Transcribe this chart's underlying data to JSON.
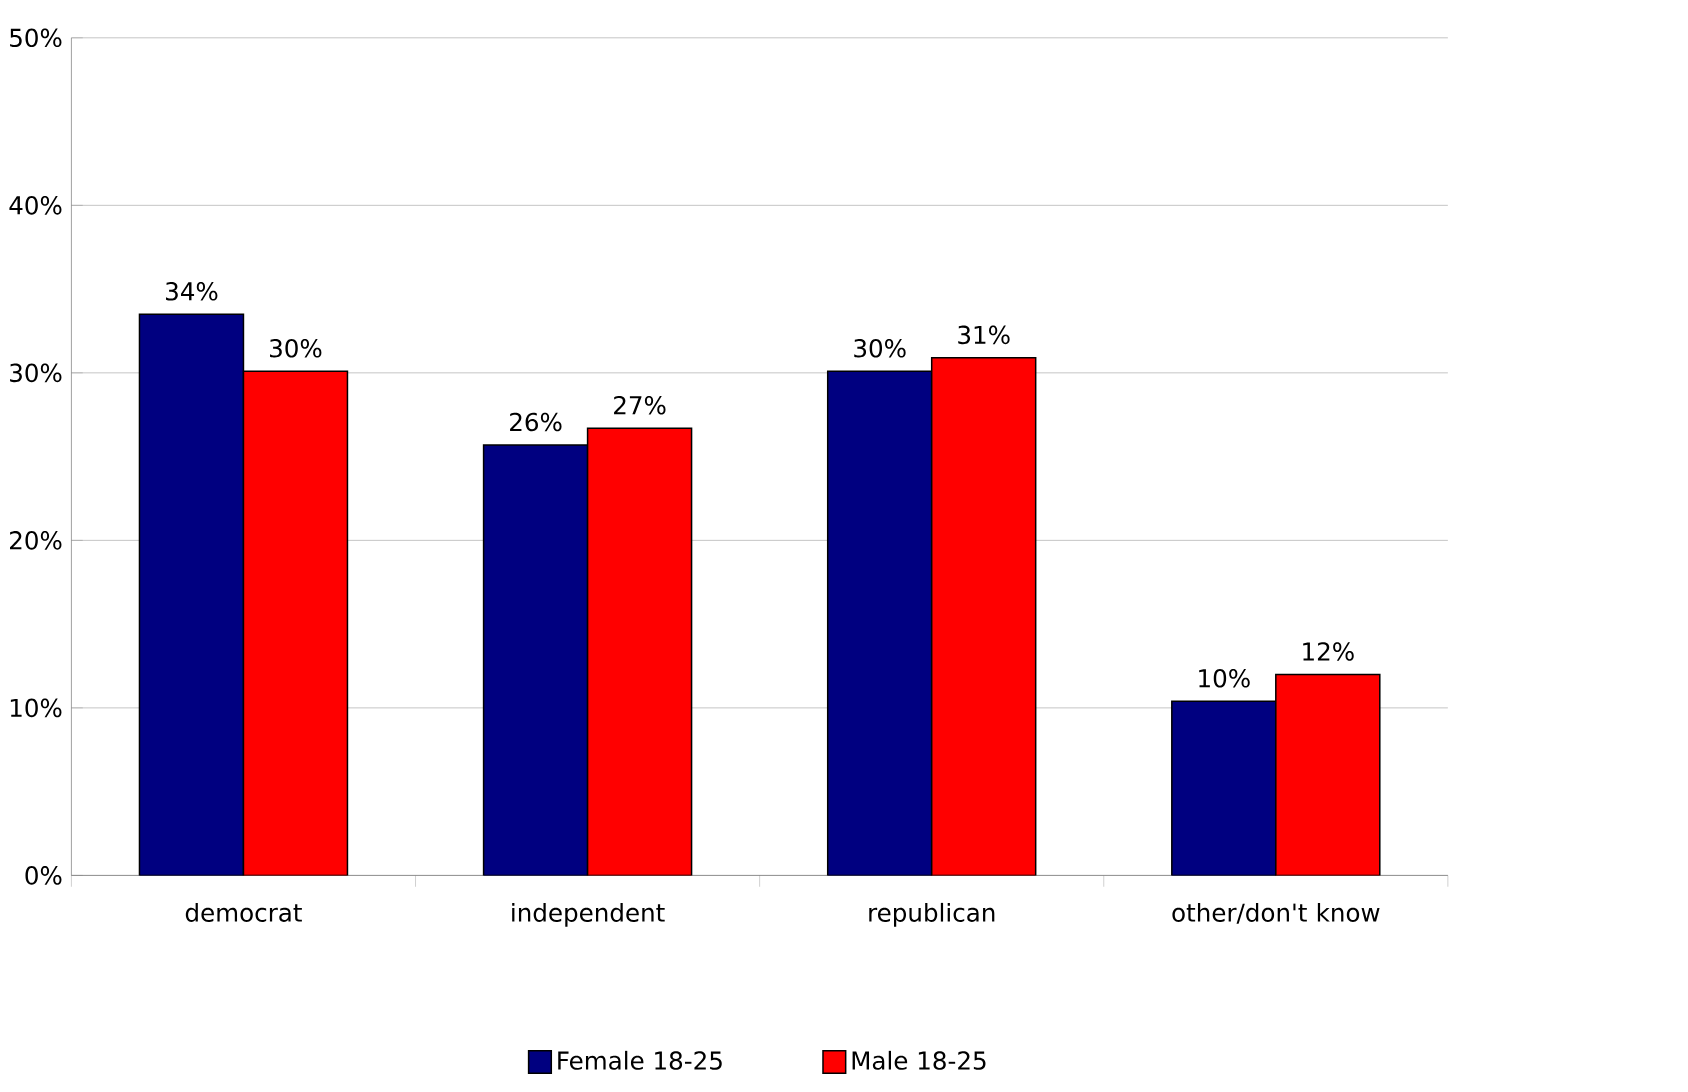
{
  "chart_data": {
    "type": "bar",
    "categories": [
      "democrat",
      "independent",
      "republican",
      "other/don't know"
    ],
    "series": [
      {
        "name": "Female 18-25",
        "color": "#000080",
        "values": [
          33.5,
          25.7,
          30.1,
          10.4
        ],
        "value_labels": [
          "34%",
          "26%",
          "30%",
          "10%"
        ]
      },
      {
        "name": "Male 18-25",
        "color": "#ff0000",
        "values": [
          30.1,
          26.7,
          30.9,
          12.0
        ],
        "value_labels": [
          "30%",
          "27%",
          "31%",
          "12%"
        ]
      }
    ],
    "ylim": [
      0,
      50
    ],
    "yticks": [
      {
        "value": 0,
        "label": "0%"
      },
      {
        "value": 10,
        "label": "10%"
      },
      {
        "value": 20,
        "label": "20%"
      },
      {
        "value": 30,
        "label": "30%"
      },
      {
        "value": 40,
        "label": "40%"
      },
      {
        "value": 50,
        "label": "50%"
      }
    ],
    "grid": "y",
    "legend": "bottom"
  }
}
